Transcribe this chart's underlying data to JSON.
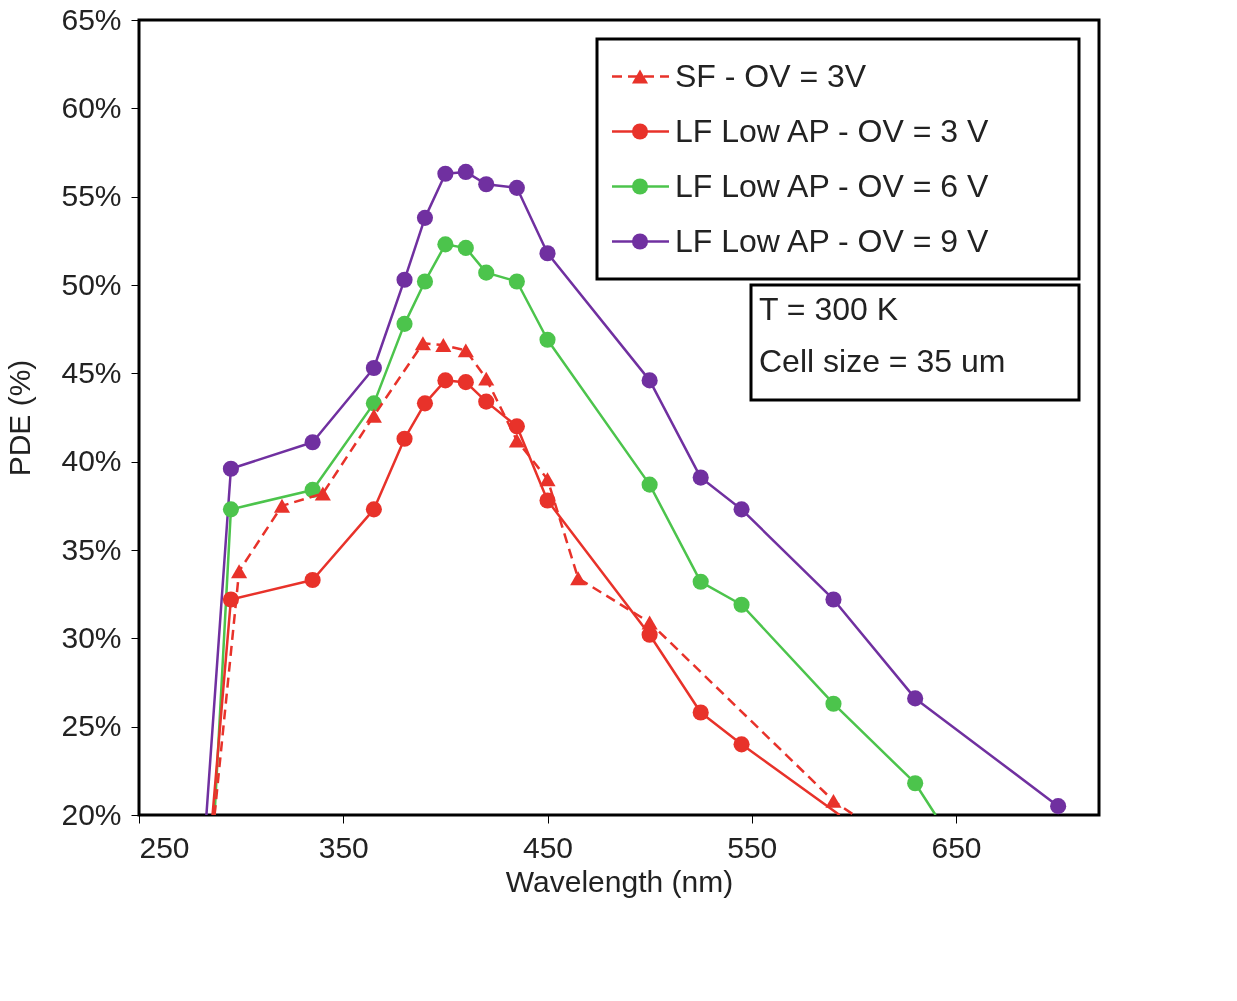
{
  "chart_data": {
    "type": "line",
    "xlabel": "Wavelength (nm)",
    "ylabel": "PDE (%)",
    "xlim": [
      250,
      720
    ],
    "xticks": [
      250,
      350,
      450,
      550,
      650
    ],
    "ylim": [
      20,
      65
    ],
    "yticks": [
      {
        "value": 20,
        "label": "20%"
      },
      {
        "value": 25,
        "label": "25%"
      },
      {
        "value": 30,
        "label": "30%"
      },
      {
        "value": 35,
        "label": "35%"
      },
      {
        "value": 40,
        "label": "40%"
      },
      {
        "value": 45,
        "label": "45%"
      },
      {
        "value": 50,
        "label": "50%"
      },
      {
        "value": 55,
        "label": "55%"
      },
      {
        "value": 60,
        "label": "60%"
      },
      {
        "value": 65,
        "label": "65%"
      }
    ],
    "grid": false,
    "legend": "top right",
    "annotations": [
      "T = 300 K\nCell size = 35 um"
    ],
    "series": [
      {
        "name": "SF - OV = 3V",
        "color": "#e8322a",
        "marker": "triangle",
        "line_style": "dashed",
        "x": [
          287,
          299,
          320,
          340,
          365,
          389,
          399,
          410,
          420,
          435,
          450,
          465,
          500,
          590,
          600
        ],
        "values": [
          20,
          33.8,
          37.5,
          38.2,
          42.6,
          46.7,
          46.6,
          46.3,
          44.7,
          41.2,
          39.0,
          33.4,
          30.9,
          20.8,
          20
        ]
      },
      {
        "name": "LF Low AP - OV = 3 V",
        "color": "#e8322a",
        "marker": "circle",
        "line_style": "solid",
        "x": [
          286,
          295,
          335,
          365,
          380,
          390,
          400,
          410,
          420,
          435,
          450,
          500,
          525,
          545,
          593
        ],
        "values": [
          20,
          32.2,
          33.3,
          37.3,
          41.3,
          43.3,
          44.6,
          44.5,
          43.4,
          42.0,
          37.8,
          30.2,
          25.8,
          24.0,
          20
        ]
      },
      {
        "name": "LF Low AP - OV = 6 V",
        "color": "#4cc44c",
        "marker": "circle",
        "line_style": "solid",
        "x": [
          287,
          295,
          335,
          365,
          380,
          390,
          400,
          410,
          420,
          435,
          450,
          500,
          525,
          545,
          590,
          630,
          640
        ],
        "values": [
          20,
          37.3,
          38.4,
          43.3,
          47.8,
          50.2,
          52.3,
          52.1,
          50.7,
          50.2,
          46.9,
          38.7,
          33.2,
          31.9,
          26.3,
          21.8,
          20
        ]
      },
      {
        "name": "LF Low AP - OV = 9 V",
        "color": "#7030a0",
        "marker": "circle",
        "line_style": "solid",
        "x": [
          283,
          295,
          335,
          365,
          380,
          390,
          400,
          410,
          420,
          435,
          450,
          500,
          525,
          545,
          590,
          630,
          700
        ],
        "values": [
          20,
          39.6,
          41.1,
          45.3,
          50.3,
          53.8,
          56.3,
          56.4,
          55.7,
          55.5,
          51.8,
          44.6,
          39.1,
          37.3,
          32.2,
          26.6,
          20.5
        ]
      }
    ]
  }
}
